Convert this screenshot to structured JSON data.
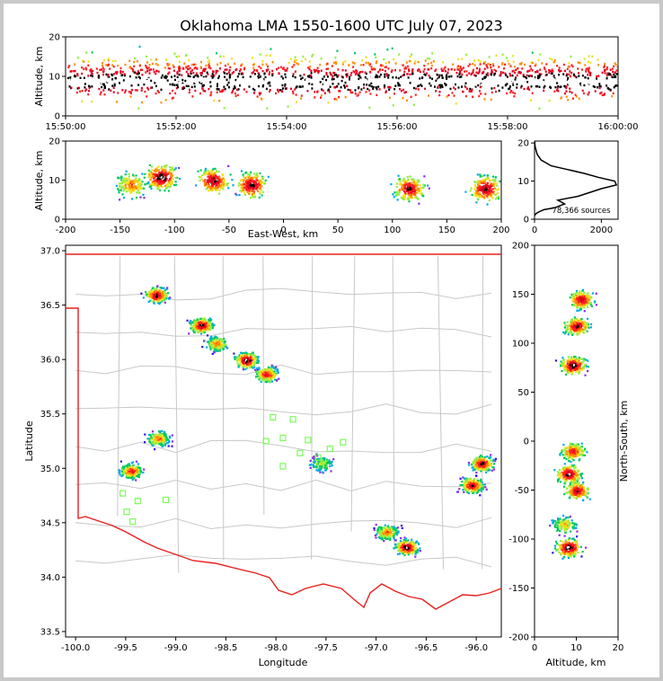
{
  "title": "Oklahoma LMA 1550-1600 UTC July 07, 2023",
  "colors": {
    "frame": "#c8c8c8",
    "boundary_red": "#e8201c",
    "county_lines": "#c8c8c8",
    "station_marker": "#7cfc5a",
    "density_scale": [
      "#2a10e8",
      "#8a2be2",
      "#00a8e8",
      "#00c860",
      "#90ee40",
      "#f0e020",
      "#ff8c00",
      "#ff2020",
      "#e00020",
      "#000000",
      "#ffffff"
    ]
  },
  "chart_data": [
    {
      "name": "time_altitude",
      "type": "heatmap",
      "xlabel": "",
      "ylabel": "Altitude, km",
      "xlim": [
        "15:50:00",
        "16:00:00"
      ],
      "ylim": [
        0,
        20
      ],
      "xticks": [
        "15:50:00",
        "15:52:00",
        "15:54:00",
        "15:56:00",
        "15:58:00",
        "16:00:00"
      ],
      "yticks": [
        "0",
        "10",
        "20"
      ],
      "peak_altitude_km": [
        5,
        12
      ]
    },
    {
      "name": "east_west_altitude",
      "type": "heatmap",
      "xlabel": "East-West, km",
      "ylabel": "Altitude, km",
      "xlim": [
        -200,
        200
      ],
      "ylim": [
        0,
        20
      ],
      "xticks": [
        "-200",
        "-150",
        "-100",
        "-50",
        "0",
        "50",
        "100",
        "150",
        "200"
      ],
      "yticks": [
        "0",
        "10",
        "20"
      ],
      "cells": [
        {
          "x": -140,
          "z": 9,
          "intensity": 0.7
        },
        {
          "x": -113,
          "z": 11,
          "intensity": 1.0
        },
        {
          "x": -65,
          "z": 10,
          "intensity": 0.95
        },
        {
          "x": -30,
          "z": 9,
          "intensity": 0.95
        },
        {
          "x": 115,
          "z": 8,
          "intensity": 0.9
        },
        {
          "x": 185,
          "z": 8,
          "intensity": 0.95
        }
      ]
    },
    {
      "name": "altitude_histogram",
      "type": "line",
      "xlabel": "",
      "ylabel": "",
      "xlim": [
        0,
        2500
      ],
      "ylim": [
        0,
        20
      ],
      "xticks": [
        "0",
        "2000"
      ],
      "yticks": [
        "0",
        "10",
        "20"
      ],
      "annotation": "78,366 sources",
      "x": [
        0,
        50,
        150,
        280,
        600,
        900,
        700,
        1300,
        2000,
        2450,
        2400,
        1900,
        1500,
        1000,
        500,
        200,
        80,
        20,
        0
      ],
      "y": [
        1,
        1.5,
        2,
        2.5,
        3,
        4,
        5,
        6,
        8,
        9,
        10,
        11,
        12,
        13,
        14,
        15.5,
        17,
        19,
        20.5
      ]
    },
    {
      "name": "plan_view",
      "type": "heatmap",
      "xlabel": "Longitude",
      "ylabel": "Latitude",
      "xlim": [
        -100.1,
        -95.75
      ],
      "ylim": [
        33.45,
        37.05
      ],
      "xticks": [
        "-100.0",
        "-99.5",
        "-99.0",
        "-98.5",
        "-98.0",
        "-97.5",
        "-97.0",
        "-96.5",
        "-96.0"
      ],
      "yticks": [
        "33.5",
        "34.0",
        "34.5",
        "35.0",
        "35.5",
        "36.0",
        "36.5",
        "37.0"
      ],
      "cells": [
        {
          "lon": -99.2,
          "lat": 36.6,
          "intensity": 0.95
        },
        {
          "lon": -98.75,
          "lat": 36.32,
          "intensity": 0.95
        },
        {
          "lon": -98.6,
          "lat": 36.15,
          "intensity": 0.7
        },
        {
          "lon": -98.3,
          "lat": 36.0,
          "intensity": 1.0
        },
        {
          "lon": -98.1,
          "lat": 35.87,
          "intensity": 0.85
        },
        {
          "lon": -99.18,
          "lat": 35.28,
          "intensity": 0.7
        },
        {
          "lon": -99.45,
          "lat": 34.98,
          "intensity": 0.8
        },
        {
          "lon": -96.7,
          "lat": 34.28,
          "intensity": 1.0
        },
        {
          "lon": -96.9,
          "lat": 34.42,
          "intensity": 0.7
        },
        {
          "lon": -95.95,
          "lat": 35.05,
          "intensity": 0.95
        },
        {
          "lon": -96.05,
          "lat": 34.85,
          "intensity": 0.9
        },
        {
          "lon": -97.55,
          "lat": 35.05,
          "intensity": 0.5
        }
      ],
      "stations": [
        {
          "lon": -98.03,
          "lat": 35.47
        },
        {
          "lon": -97.83,
          "lat": 35.45
        },
        {
          "lon": -98.1,
          "lat": 35.25
        },
        {
          "lon": -97.93,
          "lat": 35.28
        },
        {
          "lon": -97.68,
          "lat": 35.26
        },
        {
          "lon": -97.33,
          "lat": 35.24
        },
        {
          "lon": -97.46,
          "lat": 35.18
        },
        {
          "lon": -97.76,
          "lat": 35.14
        },
        {
          "lon": -97.58,
          "lat": 35.1
        },
        {
          "lon": -97.93,
          "lat": 35.02
        },
        {
          "lon": -99.53,
          "lat": 34.77
        },
        {
          "lon": -99.1,
          "lat": 34.71
        },
        {
          "lon": -99.38,
          "lat": 34.7
        },
        {
          "lon": -99.49,
          "lat": 34.6
        },
        {
          "lon": -99.43,
          "lat": 34.51
        }
      ]
    },
    {
      "name": "north_south_altitude",
      "type": "heatmap",
      "xlabel": "Altitude, km",
      "ylabel": "North-South, km",
      "xlim": [
        0,
        20
      ],
      "ylim": [
        -200,
        200
      ],
      "xticks": [
        "0",
        "10",
        "20"
      ],
      "yticks": [
        "-200",
        "-150",
        "-100",
        "-50",
        "0",
        "50",
        "100",
        "150",
        "200"
      ],
      "cells": [
        {
          "y": 145,
          "z": 11,
          "intensity": 0.9
        },
        {
          "y": 118,
          "z": 10,
          "intensity": 0.9
        },
        {
          "y": 78,
          "z": 9,
          "intensity": 1.0
        },
        {
          "y": -10,
          "z": 9,
          "intensity": 0.8
        },
        {
          "y": -33,
          "z": 8,
          "intensity": 0.95
        },
        {
          "y": -50,
          "z": 10,
          "intensity": 0.9
        },
        {
          "y": -108,
          "z": 8,
          "intensity": 1.0
        },
        {
          "y": -85,
          "z": 7,
          "intensity": 0.6
        }
      ]
    }
  ]
}
